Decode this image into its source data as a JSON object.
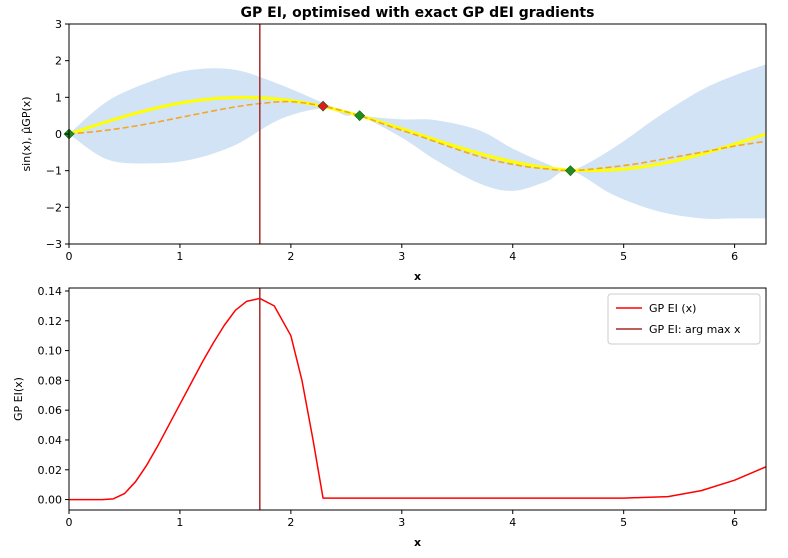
{
  "chart_data": [
    {
      "type": "line",
      "title": "GP EI, optimised with exact GP dEI gradients",
      "xlabel": "x",
      "ylabel": "sin(x), μ̂GP(x)",
      "xlim": [
        0,
        6.283
      ],
      "ylim": [
        -3,
        3
      ],
      "xticks": [
        0,
        1,
        2,
        3,
        4,
        5,
        6
      ],
      "yticks": [
        -3,
        -2,
        -1,
        0,
        1,
        2,
        3
      ],
      "grid": false,
      "vline_x": 1.72,
      "series": [
        {
          "kind": "line",
          "color": "#ffff00",
          "x": [
            0,
            0.25,
            0.5,
            0.75,
            1.0,
            1.25,
            1.5,
            1.75,
            2.0,
            2.25,
            2.5,
            2.75,
            3.0,
            3.25,
            3.5,
            3.75,
            4.0,
            4.25,
            4.5,
            4.75,
            5.0,
            5.25,
            5.5,
            5.75,
            6.0,
            6.283
          ],
          "y": [
            0,
            0.247,
            0.479,
            0.682,
            0.841,
            0.949,
            0.997,
            0.984,
            0.909,
            0.778,
            0.598,
            0.382,
            0.141,
            -0.108,
            -0.351,
            -0.572,
            -0.757,
            -0.895,
            -0.978,
            -0.999,
            -0.959,
            -0.859,
            -0.706,
            -0.508,
            -0.279,
            0
          ]
        },
        {
          "kind": "mean",
          "color": "#f5a623",
          "x": [
            0,
            0.25,
            0.5,
            0.75,
            1.0,
            1.25,
            1.5,
            1.75,
            2.0,
            2.29,
            2.62,
            2.9,
            3.2,
            3.5,
            3.8,
            4.1,
            4.3,
            4.52,
            4.8,
            5.1,
            5.4,
            5.7,
            6.0,
            6.283
          ],
          "y": [
            0,
            0.07,
            0.17,
            0.3,
            0.45,
            0.6,
            0.74,
            0.84,
            0.88,
            0.76,
            0.5,
            0.2,
            -0.1,
            -0.42,
            -0.7,
            -0.88,
            -0.95,
            -1.0,
            -0.93,
            -0.82,
            -0.66,
            -0.5,
            -0.33,
            -0.2
          ]
        },
        {
          "kind": "band",
          "color": "#cfe2f3",
          "x": [
            0,
            0.35,
            0.75,
            1.1,
            1.5,
            1.9,
            2.29,
            2.5,
            2.62,
            3.0,
            3.3,
            3.7,
            4.0,
            4.3,
            4.52,
            4.9,
            5.3,
            5.7,
            6.0,
            6.283
          ],
          "upper": [
            0,
            0.9,
            1.45,
            1.75,
            1.75,
            1.35,
            0.85,
            0.6,
            0.5,
            0.4,
            0.38,
            0.1,
            -0.4,
            -0.8,
            -1.0,
            -0.4,
            0.45,
            1.2,
            1.6,
            1.9
          ],
          "lower": [
            0,
            -0.7,
            -0.8,
            -0.7,
            -0.3,
            0.4,
            0.7,
            0.5,
            0.5,
            -0.1,
            -0.7,
            -1.35,
            -1.55,
            -1.3,
            -1.0,
            -1.65,
            -2.1,
            -2.3,
            -2.3,
            -2.3
          ]
        }
      ],
      "markers": [
        {
          "x": 0,
          "y": 0,
          "color": "#1f8c1f"
        },
        {
          "x": 2.29,
          "y": 0.76,
          "color": "#e31a1c"
        },
        {
          "x": 2.62,
          "y": 0.5,
          "color": "#1f8c1f"
        },
        {
          "x": 4.52,
          "y": -1.0,
          "color": "#1f8c1f"
        }
      ]
    },
    {
      "type": "line",
      "xlabel": "x",
      "ylabel": "GP EI(x)",
      "xlim": [
        0,
        6.283
      ],
      "ylim": [
        -0.007,
        0.142
      ],
      "xticks": [
        0,
        1,
        2,
        3,
        4,
        5,
        6
      ],
      "yticks": [
        0.0,
        0.02,
        0.04,
        0.06,
        0.08,
        0.1,
        0.12,
        0.14
      ],
      "ytick_labels": [
        "0.00",
        "0.02",
        "0.04",
        "0.06",
        "0.08",
        "0.10",
        "0.12",
        "0.14"
      ],
      "legend_position": "top-right",
      "grid": false,
      "series": [
        {
          "name": "GP EI (x)",
          "color": "#ff0000",
          "x": [
            0,
            0.3,
            0.4,
            0.5,
            0.6,
            0.7,
            0.8,
            0.9,
            1.0,
            1.1,
            1.2,
            1.3,
            1.4,
            1.5,
            1.6,
            1.72,
            1.85,
            2.0,
            2.1,
            2.2,
            2.29,
            2.5,
            3.0,
            4.0,
            5.0,
            5.4,
            5.7,
            6.0,
            6.283
          ],
          "y": [
            0,
            0,
            0.0005,
            0.004,
            0.012,
            0.023,
            0.036,
            0.05,
            0.064,
            0.078,
            0.092,
            0.105,
            0.117,
            0.127,
            0.133,
            0.135,
            0.13,
            0.11,
            0.08,
            0.04,
            0.001,
            0.001,
            0.001,
            0.001,
            0.001,
            0.002,
            0.006,
            0.013,
            0.022
          ]
        },
        {
          "name": "GP EI: arg max x",
          "kind": "vline",
          "color": "#a52a2a",
          "x_value": 1.72
        }
      ]
    }
  ]
}
